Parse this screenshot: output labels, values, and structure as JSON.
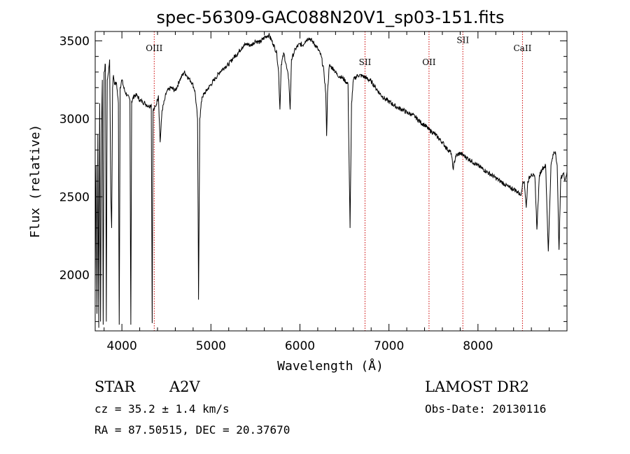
{
  "chart_data": {
    "type": "line",
    "title": "spec-56309-GAC088N20V1_sp03-151.fits",
    "xlabel": "Wavelength (Å)",
    "ylabel": "Flux (relative)",
    "xlim": [
      3700,
      9000
    ],
    "ylim": [
      1640,
      3560
    ],
    "x_ticks": [
      4000,
      5000,
      6000,
      7000,
      8000
    ],
    "y_ticks": [
      2000,
      2500,
      3000,
      3500
    ],
    "series": [
      {
        "points": [
          [
            3700,
            1900
          ],
          [
            3710,
            2700
          ],
          [
            3720,
            1750
          ],
          [
            3730,
            2900
          ],
          [
            3740,
            1660
          ],
          [
            3750,
            3100
          ],
          [
            3760,
            1700
          ],
          [
            3770,
            2900
          ],
          [
            3780,
            3250
          ],
          [
            3790,
            1680
          ],
          [
            3800,
            3300
          ],
          [
            3815,
            3350
          ],
          [
            3825,
            1700
          ],
          [
            3835,
            3250
          ],
          [
            3850,
            3300
          ],
          [
            3862,
            3380
          ],
          [
            3875,
            2500
          ],
          [
            3885,
            2300
          ],
          [
            3895,
            3200
          ],
          [
            3905,
            3280
          ],
          [
            3920,
            3220
          ],
          [
            3940,
            3230
          ],
          [
            3960,
            3100
          ],
          [
            3970,
            1680
          ],
          [
            3980,
            3200
          ],
          [
            4000,
            3250
          ],
          [
            4030,
            3180
          ],
          [
            4060,
            3150
          ],
          [
            4090,
            3120
          ],
          [
            4100,
            1680
          ],
          [
            4110,
            3110
          ],
          [
            4140,
            3150
          ],
          [
            4170,
            3150
          ],
          [
            4200,
            3120
          ],
          [
            4230,
            3110
          ],
          [
            4260,
            3100
          ],
          [
            4300,
            3080
          ],
          [
            4330,
            3090
          ],
          [
            4340,
            1690
          ],
          [
            4350,
            3050
          ],
          [
            4380,
            3080
          ],
          [
            4410,
            3150
          ],
          [
            4430,
            2850
          ],
          [
            4450,
            3050
          ],
          [
            4480,
            3120
          ],
          [
            4500,
            3170
          ],
          [
            4550,
            3200
          ],
          [
            4600,
            3180
          ],
          [
            4650,
            3250
          ],
          [
            4700,
            3300
          ],
          [
            4750,
            3260
          ],
          [
            4790,
            3230
          ],
          [
            4820,
            3180
          ],
          [
            4850,
            3000
          ],
          [
            4861,
            1840
          ],
          [
            4875,
            3000
          ],
          [
            4900,
            3140
          ],
          [
            4950,
            3180
          ],
          [
            5000,
            3220
          ],
          [
            5050,
            3260
          ],
          [
            5100,
            3300
          ],
          [
            5150,
            3330
          ],
          [
            5200,
            3350
          ],
          [
            5250,
            3390
          ],
          [
            5300,
            3420
          ],
          [
            5350,
            3460
          ],
          [
            5400,
            3480
          ],
          [
            5450,
            3470
          ],
          [
            5500,
            3500
          ],
          [
            5550,
            3490
          ],
          [
            5600,
            3520
          ],
          [
            5650,
            3540
          ],
          [
            5700,
            3480
          ],
          [
            5740,
            3420
          ],
          [
            5760,
            3300
          ],
          [
            5775,
            3060
          ],
          [
            5790,
            3350
          ],
          [
            5820,
            3420
          ],
          [
            5850,
            3330
          ],
          [
            5875,
            3250
          ],
          [
            5890,
            3060
          ],
          [
            5905,
            3380
          ],
          [
            5950,
            3450
          ],
          [
            6000,
            3480
          ],
          [
            6030,
            3470
          ],
          [
            6060,
            3500
          ],
          [
            6100,
            3520
          ],
          [
            6150,
            3490
          ],
          [
            6200,
            3450
          ],
          [
            6240,
            3400
          ],
          [
            6270,
            3300
          ],
          [
            6290,
            3160
          ],
          [
            6300,
            2890
          ],
          [
            6310,
            3170
          ],
          [
            6330,
            3340
          ],
          [
            6380,
            3320
          ],
          [
            6420,
            3280
          ],
          [
            6460,
            3270
          ],
          [
            6500,
            3250
          ],
          [
            6540,
            3220
          ],
          [
            6563,
            2300
          ],
          [
            6580,
            3100
          ],
          [
            6600,
            3250
          ],
          [
            6650,
            3280
          ],
          [
            6700,
            3275
          ],
          [
            6750,
            3260
          ],
          [
            6800,
            3240
          ],
          [
            6850,
            3200
          ],
          [
            6900,
            3160
          ],
          [
            6950,
            3130
          ],
          [
            7000,
            3110
          ],
          [
            7050,
            3090
          ],
          [
            7100,
            3070
          ],
          [
            7150,
            3060
          ],
          [
            7200,
            3040
          ],
          [
            7250,
            3030
          ],
          [
            7300,
            3010
          ],
          [
            7350,
            2980
          ],
          [
            7400,
            2960
          ],
          [
            7450,
            2930
          ],
          [
            7500,
            2910
          ],
          [
            7550,
            2880
          ],
          [
            7600,
            2850
          ],
          [
            7650,
            2810
          ],
          [
            7700,
            2780
          ],
          [
            7720,
            2680
          ],
          [
            7750,
            2760
          ],
          [
            7800,
            2780
          ],
          [
            7850,
            2760
          ],
          [
            7900,
            2740
          ],
          [
            7950,
            2720
          ],
          [
            8000,
            2700
          ],
          [
            8050,
            2680
          ],
          [
            8100,
            2660
          ],
          [
            8150,
            2640
          ],
          [
            8200,
            2620
          ],
          [
            8250,
            2600
          ],
          [
            8300,
            2580
          ],
          [
            8350,
            2560
          ],
          [
            8400,
            2550
          ],
          [
            8450,
            2530
          ],
          [
            8480,
            2510
          ],
          [
            8500,
            2580
          ],
          [
            8520,
            2600
          ],
          [
            8542,
            2430
          ],
          [
            8560,
            2600
          ],
          [
            8600,
            2650
          ],
          [
            8640,
            2620
          ],
          [
            8662,
            2290
          ],
          [
            8690,
            2640
          ],
          [
            8720,
            2680
          ],
          [
            8760,
            2700
          ],
          [
            8790,
            2150
          ],
          [
            8820,
            2700
          ],
          [
            8850,
            2780
          ],
          [
            8870,
            2790
          ],
          [
            8890,
            2700
          ],
          [
            8910,
            2160
          ],
          [
            8930,
            2620
          ],
          [
            8960,
            2650
          ],
          [
            8980,
            2610
          ],
          [
            9000,
            2660
          ]
        ]
      }
    ],
    "line_markers": [
      {
        "label": "OIII",
        "x": 4363,
        "label_y": 3435
      },
      {
        "label": "SII",
        "x": 6731,
        "label_y": 3345
      },
      {
        "label": "OII",
        "x": 7450,
        "label_y": 3345
      },
      {
        "label": "SII",
        "x": 7830,
        "label_y": 3485
      },
      {
        "label": "CaII",
        "x": 8500,
        "label_y": 3435
      }
    ],
    "marker_color": "#cc0000",
    "grid": false,
    "legend": "none"
  },
  "info": {
    "object_class": "STAR",
    "subclass": "A2V",
    "survey": "LAMOST DR2",
    "redshift": "cz =  35.2 ± 1.4 km/s",
    "obs_date": "Obs-Date: 20130116",
    "coords": "RA =  87.50515, DEC =  20.37670"
  }
}
